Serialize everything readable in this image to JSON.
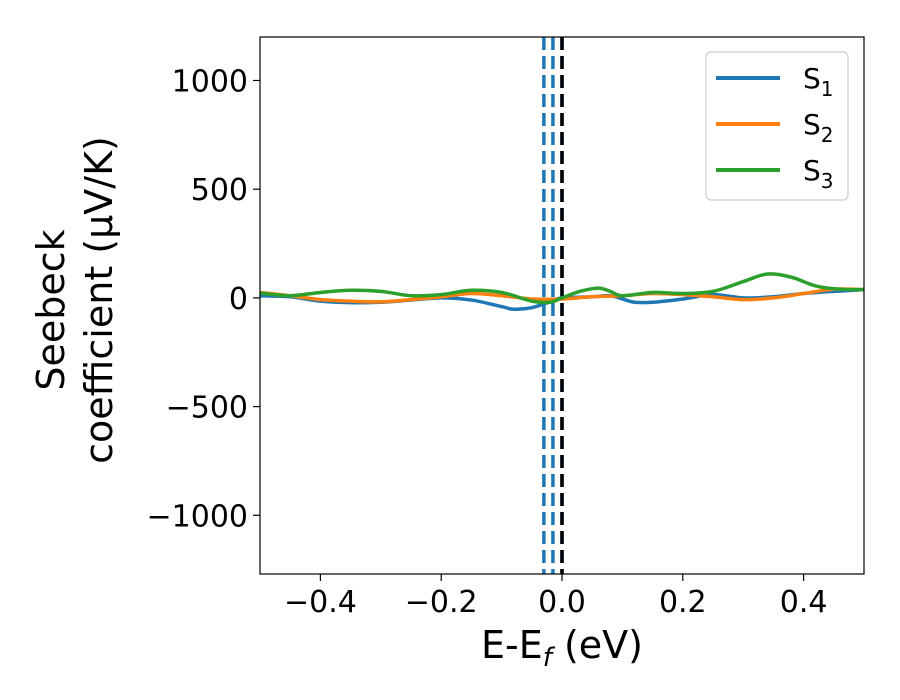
{
  "chart_data": {
    "type": "line",
    "xlabel": "E-E",
    "xlabel_sub": "f",
    "xlabel_unit": " (eV)",
    "ylabel_line1": "Seebeck",
    "ylabel_line2": "coefficient  (μV/K)",
    "xlim": [
      -0.5,
      0.5
    ],
    "ylim": [
      -1270,
      1200
    ],
    "xticks": [
      -0.4,
      -0.2,
      0.0,
      0.2,
      0.4
    ],
    "xtick_labels": [
      "−0.4",
      "−0.2",
      "0.0",
      "0.2",
      "0.4"
    ],
    "yticks": [
      -1000,
      -500,
      0,
      500,
      1000
    ],
    "ytick_labels": [
      "−1000",
      "−500",
      "0",
      "500",
      "1000"
    ],
    "grid": false,
    "legend_position": "top-right",
    "vlines": [
      {
        "x": -0.03,
        "style": "dashed",
        "color": "#1f77b4"
      },
      {
        "x": -0.015,
        "style": "dashed",
        "color": "#1f77b4"
      },
      {
        "x": 0.0,
        "style": "dashed",
        "color": "#1f77b4"
      },
      {
        "x": 0.0,
        "style": "dashed",
        "color": "#000000"
      }
    ],
    "series": [
      {
        "name": "S",
        "name_sub": "1",
        "color": "#1f77b4",
        "x": [
          -0.5,
          -0.45,
          -0.4,
          -0.35,
          -0.3,
          -0.25,
          -0.2,
          -0.15,
          -0.1,
          -0.08,
          -0.05,
          -0.02,
          0.0,
          0.05,
          0.08,
          0.1,
          0.12,
          0.15,
          0.2,
          0.25,
          0.3,
          0.35,
          0.4,
          0.45,
          0.5
        ],
        "y": [
          10,
          5,
          -15,
          -22,
          -20,
          -10,
          0,
          -10,
          -40,
          -52,
          -45,
          -18,
          0,
          5,
          10,
          -5,
          -20,
          -20,
          -5,
          15,
          0,
          5,
          20,
          30,
          38
        ]
      },
      {
        "name": "S",
        "name_sub": "2",
        "color": "#ff7f0e",
        "x": [
          -0.5,
          -0.45,
          -0.4,
          -0.35,
          -0.3,
          -0.25,
          -0.2,
          -0.15,
          -0.1,
          -0.05,
          0.0,
          0.05,
          0.1,
          0.15,
          0.2,
          0.25,
          0.3,
          0.35,
          0.4,
          0.45,
          0.5
        ],
        "y": [
          25,
          10,
          -8,
          -15,
          -18,
          -8,
          5,
          20,
          10,
          -5,
          -5,
          5,
          10,
          20,
          15,
          5,
          -8,
          0,
          20,
          40,
          38
        ]
      },
      {
        "name": "S",
        "name_sub": "3",
        "color": "#2ca02c",
        "x": [
          -0.5,
          -0.45,
          -0.4,
          -0.35,
          -0.3,
          -0.25,
          -0.2,
          -0.15,
          -0.1,
          -0.05,
          -0.02,
          0.0,
          0.03,
          0.06,
          0.08,
          0.1,
          0.15,
          0.2,
          0.25,
          0.3,
          0.34,
          0.38,
          0.42,
          0.46,
          0.5
        ],
        "y": [
          22,
          10,
          25,
          35,
          30,
          10,
          15,
          35,
          25,
          -15,
          -20,
          0,
          30,
          45,
          30,
          10,
          25,
          20,
          30,
          75,
          110,
          95,
          55,
          40,
          38
        ]
      }
    ]
  }
}
